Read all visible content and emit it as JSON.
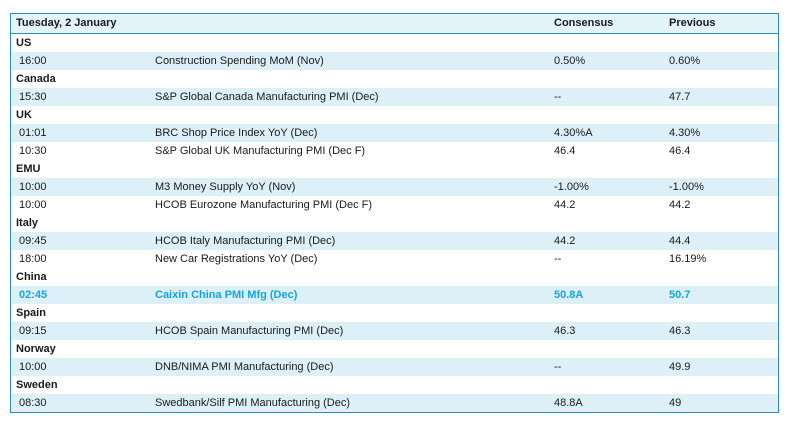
{
  "header": {
    "date": "Tuesday, 2 January",
    "consensus": "Consensus",
    "previous": "Previous"
  },
  "rows": [
    {
      "kind": "country",
      "name": "US"
    },
    {
      "kind": "event",
      "time": "16:00",
      "event": "Construction Spending MoM (Nov)",
      "consensus": "0.50%",
      "previous": "0.60%"
    },
    {
      "kind": "country",
      "name": "Canada"
    },
    {
      "kind": "event",
      "time": "15:30",
      "event": "S&P Global Canada Manufacturing PMI (Dec)",
      "consensus": "--",
      "previous": "47.7"
    },
    {
      "kind": "country",
      "name": "UK"
    },
    {
      "kind": "event",
      "time": "01:01",
      "event": "BRC Shop Price Index YoY (Dec)",
      "consensus": "4.30%A",
      "previous": "4.30%"
    },
    {
      "kind": "event",
      "time": "10:30",
      "event": "S&P Global UK Manufacturing PMI (Dec F)",
      "consensus": "46.4",
      "previous": "46.4"
    },
    {
      "kind": "country",
      "name": "EMU"
    },
    {
      "kind": "event",
      "time": "10:00",
      "event": "M3 Money Supply YoY (Nov)",
      "consensus": "-1.00%",
      "previous": "-1.00%"
    },
    {
      "kind": "event",
      "time": "10:00",
      "event": "HCOB Eurozone Manufacturing PMI (Dec F)",
      "consensus": "44.2",
      "previous": "44.2"
    },
    {
      "kind": "country",
      "name": "Italy"
    },
    {
      "kind": "event",
      "time": "09:45",
      "event": "HCOB Italy Manufacturing PMI (Dec)",
      "consensus": "44.2",
      "previous": "44.4"
    },
    {
      "kind": "event",
      "time": "18:00",
      "event": "New Car Registrations YoY (Dec)",
      "consensus": "--",
      "previous": "16.19%"
    },
    {
      "kind": "country",
      "name": "China"
    },
    {
      "kind": "event",
      "time": "02:45",
      "event": "Caixin China PMI Mfg (Dec)",
      "consensus": "50.8A",
      "previous": "50.7",
      "highlight": true
    },
    {
      "kind": "country",
      "name": "Spain"
    },
    {
      "kind": "event",
      "time": "09:15",
      "event": "HCOB Spain Manufacturing PMI (Dec)",
      "consensus": "46.3",
      "previous": "46.3"
    },
    {
      "kind": "country",
      "name": "Norway"
    },
    {
      "kind": "event",
      "time": "10:00",
      "event": "DNB/NIMA PMI Manufacturing (Dec)",
      "consensus": "--",
      "previous": "49.9"
    },
    {
      "kind": "country",
      "name": "Sweden"
    },
    {
      "kind": "event",
      "time": "08:30",
      "event": "Swedbank/Silf PMI Manufacturing (Dec)",
      "consensus": "48.8A",
      "previous": "49"
    }
  ],
  "colors": {
    "border": "#2f8fb0",
    "shade": "#ddf0f8",
    "highlight": "#17a6d6"
  }
}
